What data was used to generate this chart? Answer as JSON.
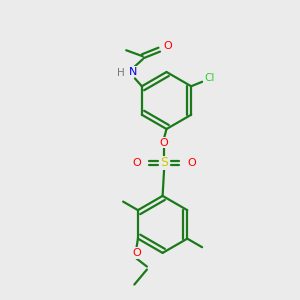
{
  "background_color": "#ebebeb",
  "bond_color": "#1a7a1a",
  "oxygen_color": "#FF0000",
  "nitrogen_color": "#0000DD",
  "sulfur_color": "#cccc00",
  "chlorine_color": "#33cc33",
  "h_color": "#777777",
  "line_width": 1.6,
  "dbl_sep": 0.07,
  "figsize": [
    3.0,
    3.0
  ],
  "dpi": 100,
  "xlim": [
    0,
    10
  ],
  "ylim": [
    0,
    10
  ]
}
